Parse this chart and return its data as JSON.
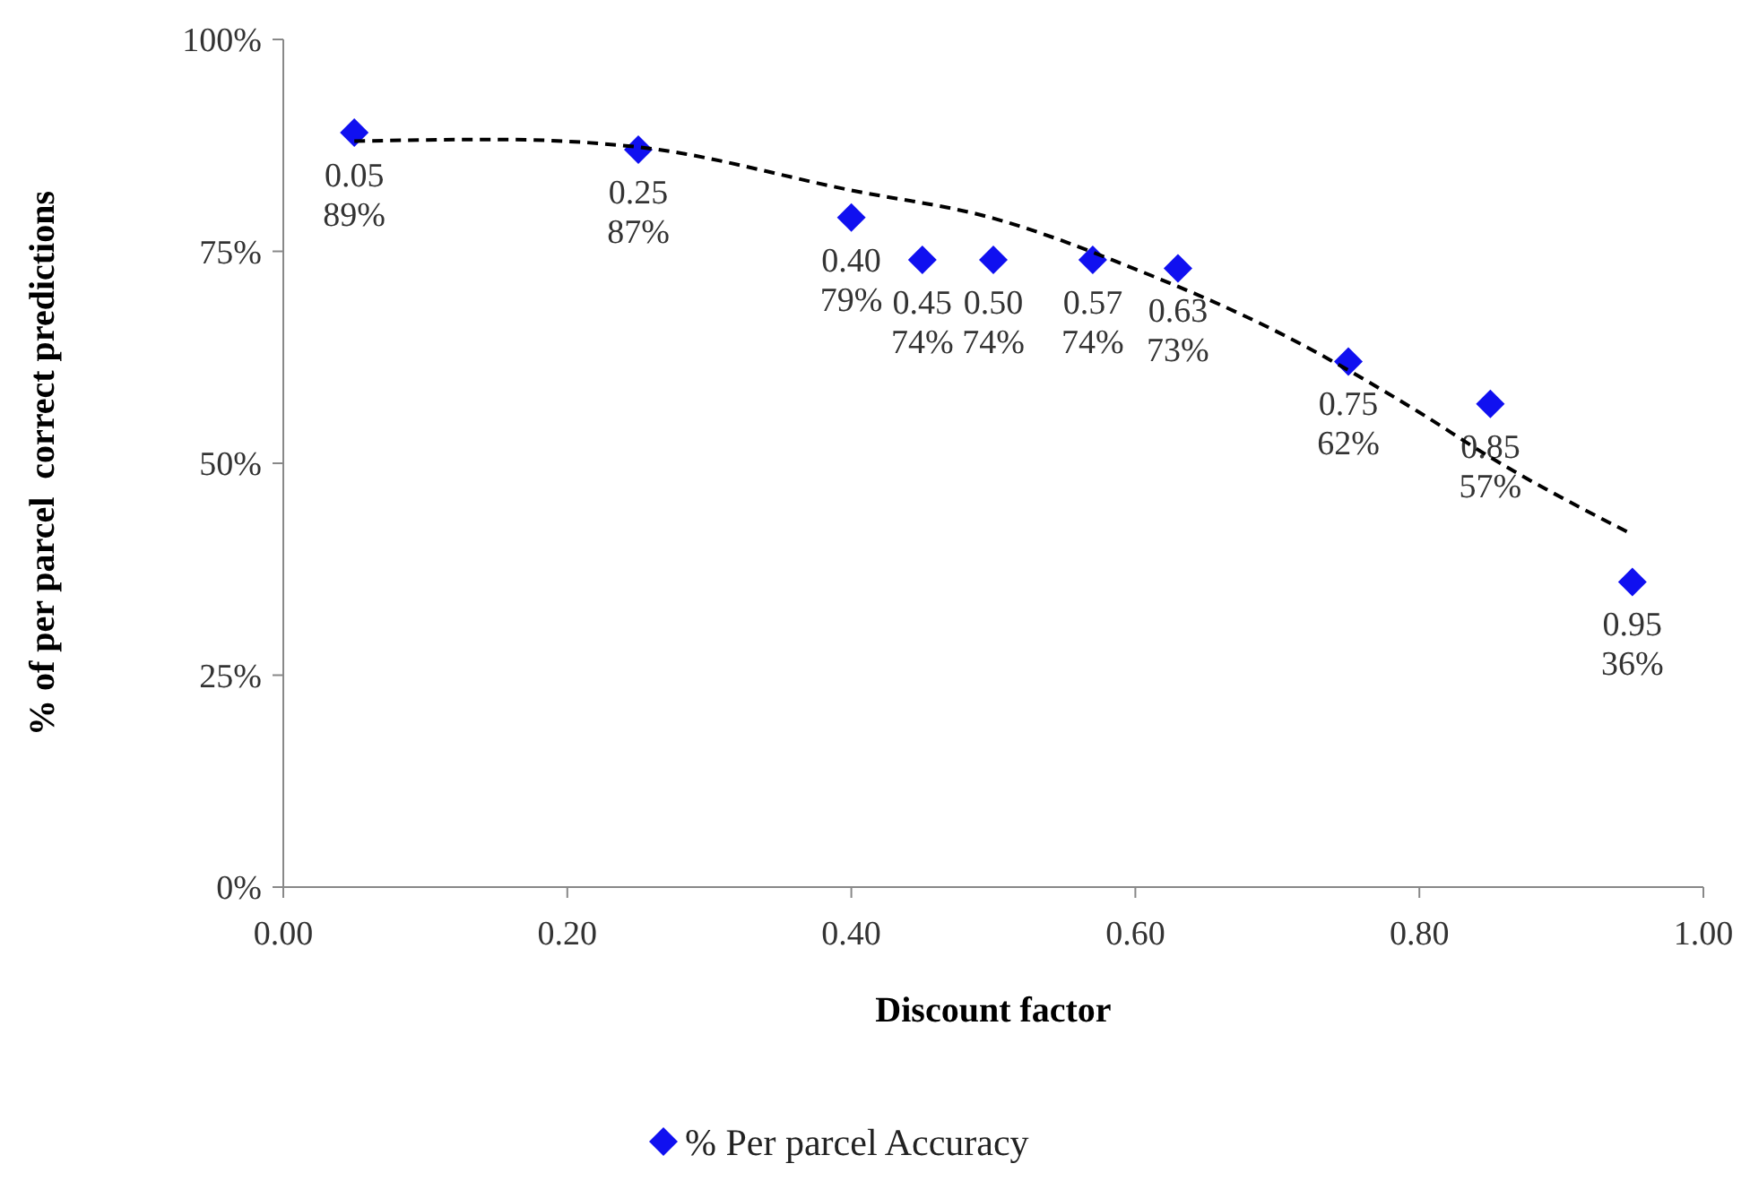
{
  "chart_data": {
    "type": "scatter",
    "xlabel": "Discount factor",
    "ylabel": "% of per parcel  correct predictions",
    "xlim": [
      0,
      1
    ],
    "xticks": [
      {
        "value": 0,
        "label": "0.00"
      },
      {
        "value": 0.2,
        "label": "0.20"
      },
      {
        "value": 0.4,
        "label": "0.40"
      },
      {
        "value": 0.6,
        "label": "0.60"
      },
      {
        "value": 0.8,
        "label": "0.80"
      },
      {
        "value": 1,
        "label": "1.00"
      }
    ],
    "ylim": [
      0,
      100
    ],
    "yticks": [
      {
        "value": 0,
        "label": "0%"
      },
      {
        "value": 25,
        "label": "25%"
      },
      {
        "value": 50,
        "label": "50%"
      },
      {
        "value": 75,
        "label": "75%"
      },
      {
        "value": 100,
        "label": "100%"
      }
    ],
    "grid": false,
    "legend": "bottom",
    "series": [
      {
        "name": "% Per parcel Accuracy",
        "color": "#1010f0",
        "marker": "diamond",
        "x": [
          0.05,
          0.25,
          0.4,
          0.45,
          0.5,
          0.57,
          0.63,
          0.75,
          0.85,
          0.95
        ],
        "values": [
          89,
          87,
          79,
          74,
          74,
          74,
          73,
          62,
          57,
          36
        ],
        "value_labels": [
          "0.05\n89%",
          "0.25\n87%",
          "0.40\n79%",
          "0.45\n74%",
          "0.50\n74%",
          "0.57\n74%",
          "0.63\n73%",
          "0.75\n62%",
          "0.85\n57%",
          "0.95\n36%"
        ]
      },
      {
        "type": "line",
        "color": "#000000",
        "line_style": "dashed",
        "marker": "none",
        "x": [
          0.05,
          0.15,
          0.25,
          0.4,
          0.5,
          0.6,
          0.7,
          0.8,
          0.85,
          0.95
        ],
        "values": [
          88,
          88.2,
          87.3,
          82.2,
          78.9,
          72.9,
          65.5,
          56,
          50.7,
          41.6
        ]
      }
    ]
  }
}
